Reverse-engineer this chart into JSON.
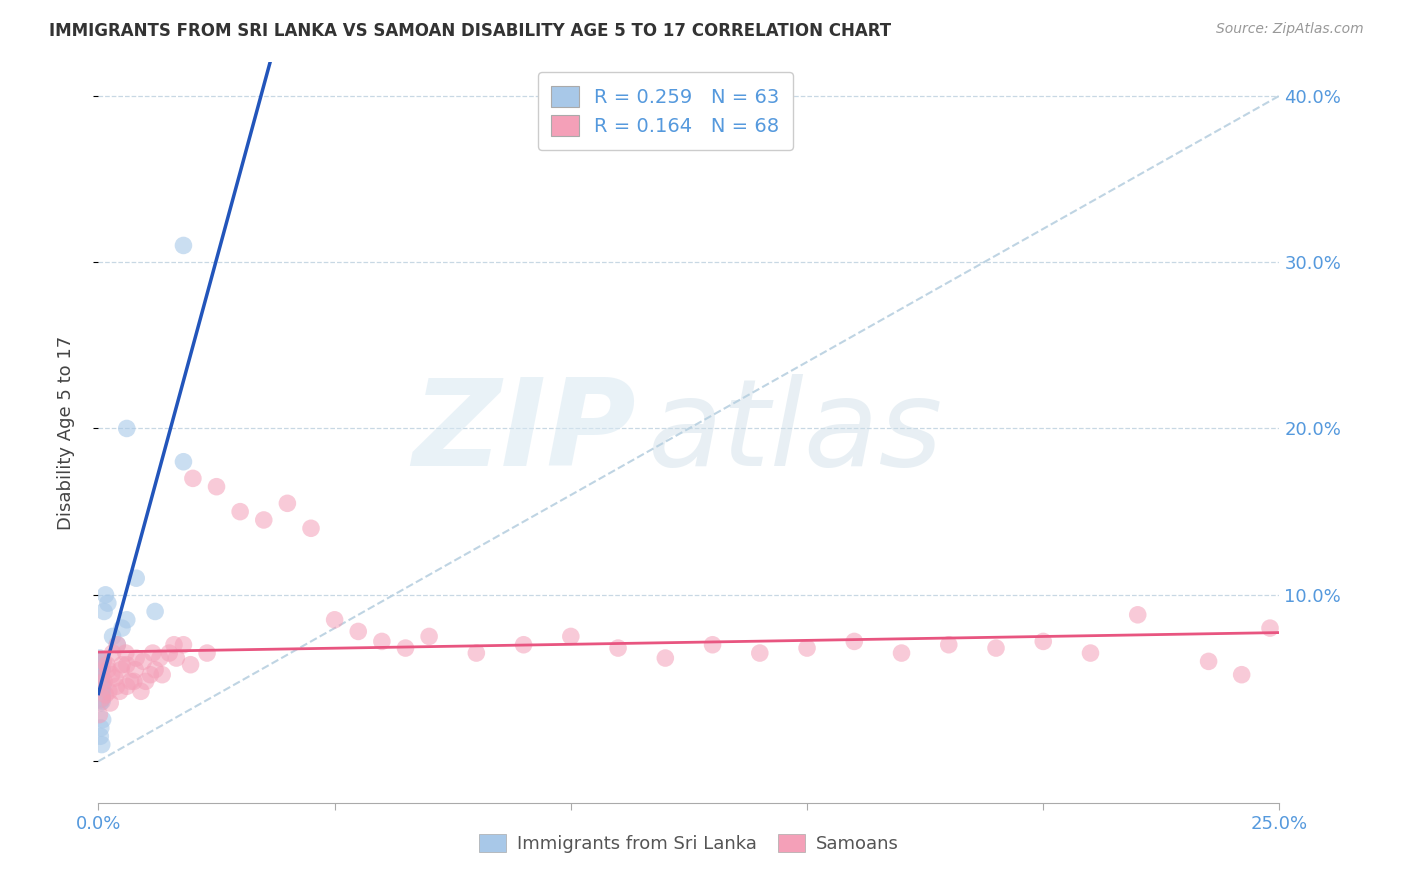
{
  "title": "IMMIGRANTS FROM SRI LANKA VS SAMOAN DISABILITY AGE 5 TO 17 CORRELATION CHART",
  "source": "Source: ZipAtlas.com",
  "ylabel": "Disability Age 5 to 17",
  "xlim": [
    0.0,
    0.25
  ],
  "ylim": [
    -0.025,
    0.42
  ],
  "R_sri_lanka": 0.259,
  "N_sri_lanka": 63,
  "R_samoans": 0.164,
  "N_samoans": 68,
  "color_sri_lanka": "#a8c8e8",
  "color_samoans": "#f4a0b8",
  "color_regression_sri_lanka": "#2255bb",
  "color_regression_samoans": "#e85580",
  "color_diagonal": "#b8d0e0",
  "color_grid": "#c8d8e4",
  "color_tick": "#5599dd",
  "legend_label_sri_lanka": "Immigrants from Sri Lanka",
  "legend_label_samoans": "Samoans",
  "ytick_positions": [
    0.0,
    0.1,
    0.2,
    0.3,
    0.4
  ],
  "ytick_labels": [
    "",
    "10.0%",
    "20.0%",
    "30.0%",
    "40.0%"
  ],
  "sl_x": [
    0.0004,
    0.0006,
    0.0003,
    0.0008,
    0.0005,
    0.0007,
    0.0004,
    0.0006,
    0.0005,
    0.0003,
    0.0008,
    0.0005,
    0.0004,
    0.0006,
    0.0003,
    0.0007,
    0.0005,
    0.0004,
    0.0006,
    0.0003,
    0.0009,
    0.0005,
    0.0004,
    0.0007,
    0.0003,
    0.0006,
    0.0005,
    0.0004,
    0.0008,
    0.0003,
    0.0005,
    0.0007,
    0.0004,
    0.0006,
    0.0003,
    0.0008,
    0.0005,
    0.0004,
    0.0006,
    0.0003,
    0.001,
    0.0005,
    0.0004,
    0.0007,
    0.0003,
    0.0006,
    0.0005,
    0.0012,
    0.0015,
    0.002,
    0.003,
    0.004,
    0.005,
    0.006,
    0.008,
    0.012,
    0.018,
    0.0007,
    0.0004,
    0.0005,
    0.0009,
    0.018,
    0.006
  ],
  "sl_y": [
    0.045,
    0.038,
    0.05,
    0.042,
    0.055,
    0.048,
    0.035,
    0.06,
    0.04,
    0.052,
    0.044,
    0.038,
    0.056,
    0.043,
    0.048,
    0.037,
    0.053,
    0.046,
    0.041,
    0.057,
    0.04,
    0.052,
    0.045,
    0.039,
    0.06,
    0.043,
    0.049,
    0.037,
    0.055,
    0.042,
    0.047,
    0.038,
    0.054,
    0.041,
    0.058,
    0.036,
    0.051,
    0.044,
    0.039,
    0.062,
    0.045,
    0.05,
    0.04,
    0.055,
    0.037,
    0.048,
    0.042,
    0.09,
    0.1,
    0.095,
    0.075,
    0.07,
    0.08,
    0.085,
    0.11,
    0.09,
    0.18,
    0.01,
    0.015,
    0.02,
    0.025,
    0.31,
    0.2
  ],
  "sa_x": [
    0.0005,
    0.001,
    0.002,
    0.003,
    0.004,
    0.005,
    0.006,
    0.008,
    0.01,
    0.012,
    0.015,
    0.018,
    0.02,
    0.025,
    0.03,
    0.035,
    0.04,
    0.045,
    0.05,
    0.055,
    0.06,
    0.065,
    0.07,
    0.08,
    0.09,
    0.1,
    0.11,
    0.12,
    0.13,
    0.14,
    0.15,
    0.16,
    0.17,
    0.18,
    0.19,
    0.2,
    0.21,
    0.22,
    0.0015,
    0.0025,
    0.0035,
    0.0045,
    0.006,
    0.0075,
    0.009,
    0.011,
    0.013,
    0.016,
    0.0002,
    0.0008,
    0.0012,
    0.0018,
    0.0022,
    0.0028,
    0.0038,
    0.0048,
    0.0058,
    0.0068,
    0.0078,
    0.0095,
    0.0115,
    0.0135,
    0.0165,
    0.0195,
    0.023,
    0.235,
    0.242,
    0.248
  ],
  "sa_y": [
    0.05,
    0.06,
    0.055,
    0.065,
    0.07,
    0.058,
    0.045,
    0.062,
    0.048,
    0.055,
    0.065,
    0.07,
    0.17,
    0.165,
    0.15,
    0.145,
    0.155,
    0.14,
    0.085,
    0.078,
    0.072,
    0.068,
    0.075,
    0.065,
    0.07,
    0.075,
    0.068,
    0.062,
    0.07,
    0.065,
    0.068,
    0.072,
    0.065,
    0.07,
    0.068,
    0.072,
    0.065,
    0.088,
    0.04,
    0.035,
    0.05,
    0.042,
    0.058,
    0.048,
    0.042,
    0.052,
    0.062,
    0.07,
    0.028,
    0.038,
    0.048,
    0.058,
    0.042,
    0.052,
    0.045,
    0.055,
    0.065,
    0.048,
    0.055,
    0.06,
    0.065,
    0.052,
    0.062,
    0.058,
    0.065,
    0.06,
    0.052,
    0.08
  ]
}
